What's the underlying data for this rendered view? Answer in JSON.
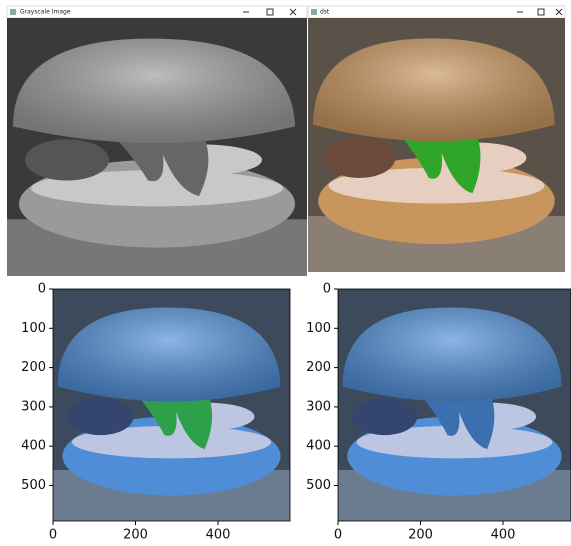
{
  "windows": [
    {
      "title": "Grayscale Image"
    },
    {
      "title": "dst"
    }
  ],
  "plots": [
    {
      "yticks": [
        "0",
        "100",
        "200",
        "300",
        "400",
        "500"
      ],
      "xticks": [
        "0",
        "200",
        "400"
      ]
    },
    {
      "yticks": [
        "0",
        "100",
        "200",
        "300",
        "400",
        "500"
      ],
      "xticks": [
        "0",
        "200",
        "400"
      ]
    }
  ]
}
